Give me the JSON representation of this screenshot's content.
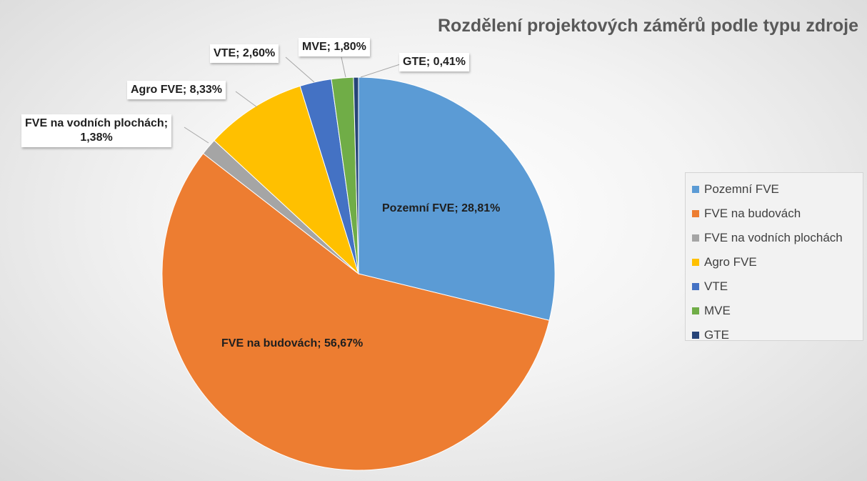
{
  "chart_data": {
    "type": "pie",
    "title": "Rozdělení projektových záměrů podle typu zdroje",
    "slices": [
      {
        "name": "Pozemní FVE",
        "value": 28.81,
        "label": "Pozemní FVE; 28,81%",
        "color": "#5B9BD5"
      },
      {
        "name": "FVE na budovách",
        "value": 56.67,
        "label": "FVE na budovách; 56,67%",
        "color": "#ED7D31"
      },
      {
        "name": "FVE na vodních plochách",
        "value": 1.38,
        "label": "FVE na vodních plochách;\n1,38%",
        "color": "#A5A5A5"
      },
      {
        "name": "Agro FVE",
        "value": 8.33,
        "label": "Agro FVE; 8,33%",
        "color": "#FFC000"
      },
      {
        "name": "VTE",
        "value": 2.6,
        "label": "VTE; 2,60%",
        "color": "#4472C4"
      },
      {
        "name": "MVE",
        "value": 1.8,
        "label": "MVE; 1,80%",
        "color": "#70AD47"
      },
      {
        "name": "GTE",
        "value": 0.41,
        "label": "GTE; 0,41%",
        "color": "#264478"
      }
    ],
    "legend_position": "right"
  }
}
